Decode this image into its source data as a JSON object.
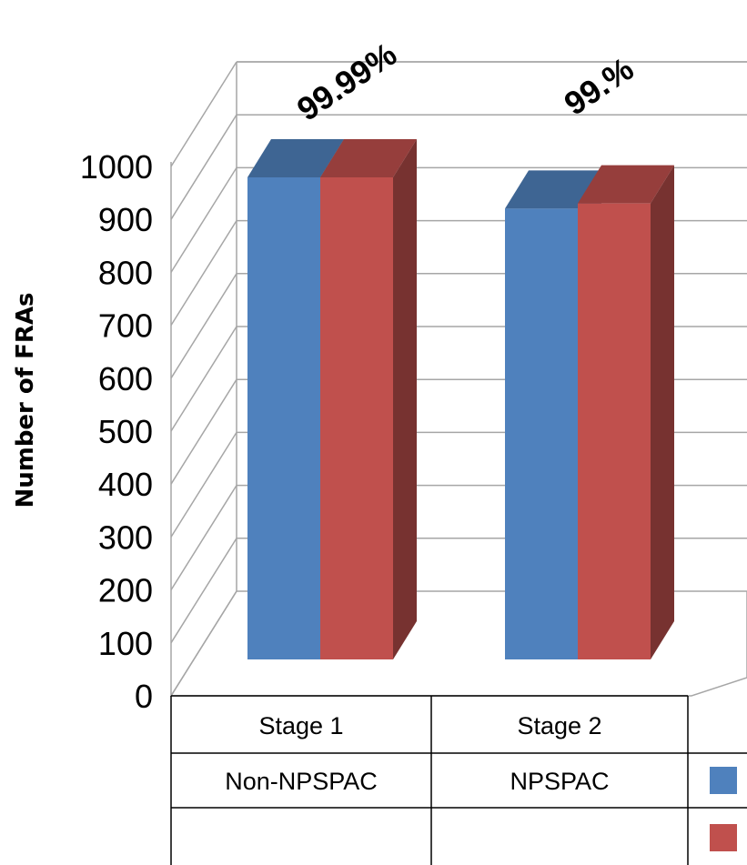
{
  "chart_data": {
    "type": "bar",
    "ylabel": "Number of FRAs",
    "ylim": [
      0,
      1000
    ],
    "yticks": [
      0,
      100,
      200,
      300,
      400,
      500,
      600,
      700,
      800,
      900,
      1000
    ],
    "grid": true,
    "categories": [
      "Stage 1",
      "Stage 2"
    ],
    "category_sublabels": [
      "Non-NPSPAC",
      "NPSPAC"
    ],
    "series": [
      {
        "color": "#4F81BD",
        "values": [
          925,
          865
        ]
      },
      {
        "color": "#C0504D",
        "values": [
          925,
          875
        ]
      }
    ],
    "annotations": [
      "99.99%",
      "99.%"
    ]
  }
}
